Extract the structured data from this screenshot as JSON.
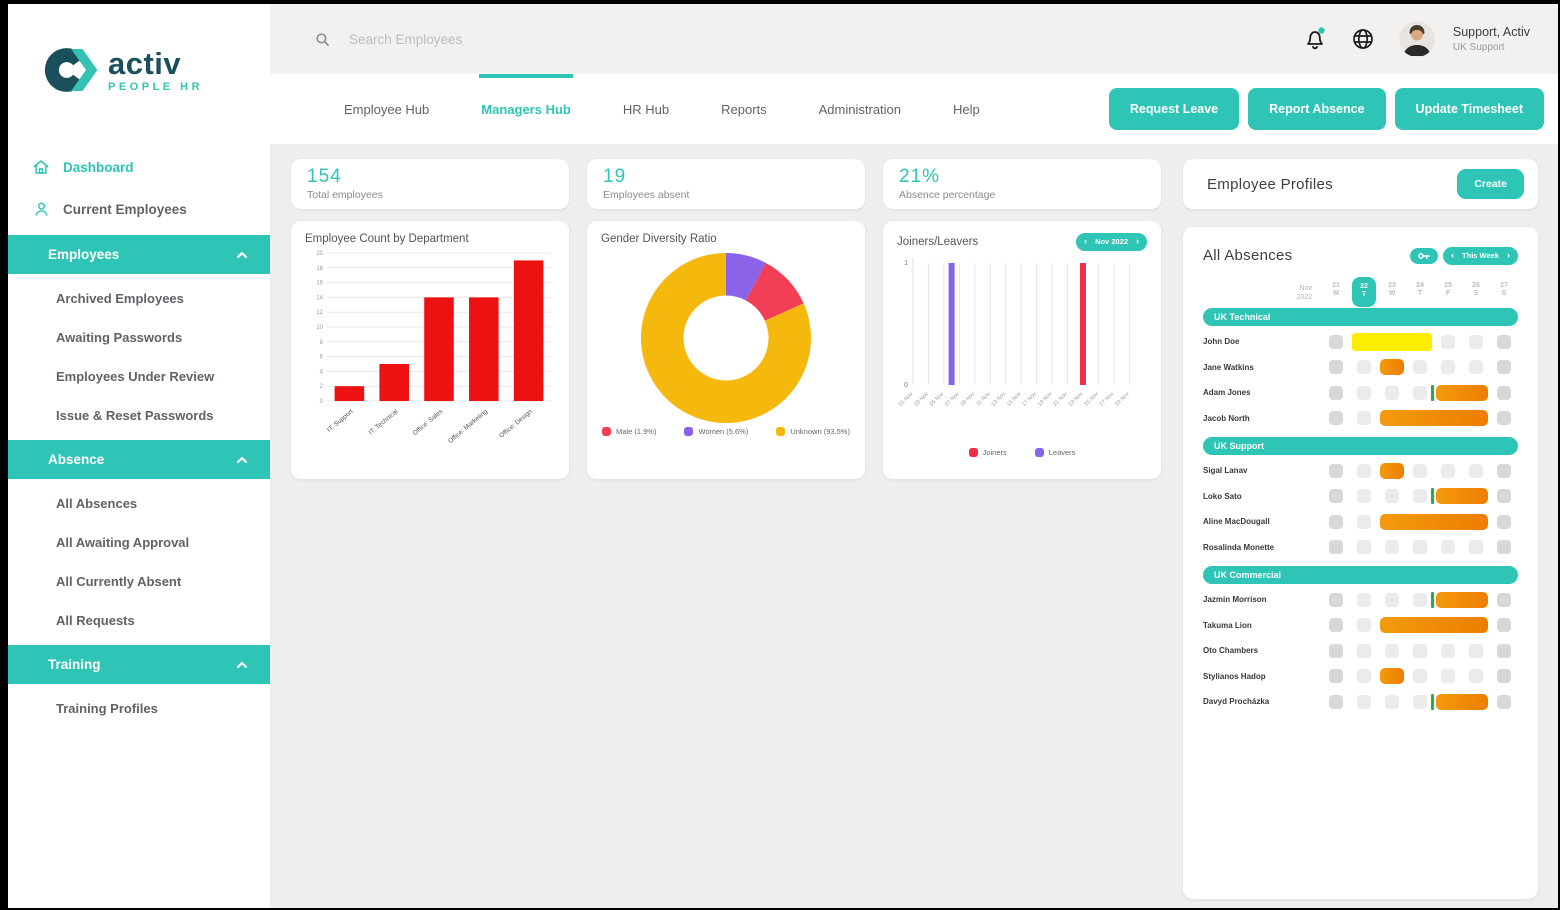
{
  "colors": {
    "accent": "#2ec4b6",
    "logo_dark": "#1b4f5c",
    "bar_red": "#ee1111",
    "pie_male": "#f23e57",
    "pie_women": "#8a63e8",
    "pie_unknown": "#f5b80d",
    "joiners": "#ef2d49",
    "leavers": "#8266e8",
    "absence_orange_from": "#f29b0b",
    "absence_orange_to": "#ee7d01",
    "absence_yellow": "#fdee00",
    "absence_green_marker": "#27ae3f",
    "cell_gray": "#ebebeb",
    "cell_gray_dark": "#d8d8d8"
  },
  "sidebar": {
    "logo": {
      "brand": "activ",
      "sub": "PEOPLE HR"
    },
    "items": [
      {
        "label": "Dashboard",
        "icon": "home-icon",
        "active": true
      },
      {
        "label": "Current Employees",
        "icon": "user-icon",
        "active": false
      }
    ],
    "sections": [
      {
        "label": "Employees",
        "icon": "chevron-up-icon",
        "items": [
          "Archived Employees",
          "Awaiting Passwords",
          "Employees Under Review",
          "Issue & Reset Passwords"
        ]
      },
      {
        "label": "Absence",
        "icon": "chevron-up-icon",
        "items": [
          "All Absences",
          "All Awaiting Approval",
          "All Currently Absent",
          "All Requests"
        ]
      },
      {
        "label": "Training",
        "icon": "chevron-up-icon",
        "items": [
          "Training Profiles"
        ]
      }
    ]
  },
  "topbar": {
    "search_placeholder": "Search Employees",
    "search_icon": "search-icon",
    "bell_icon": "bell-icon",
    "globe_icon": "globe-icon",
    "user_name": "Support, Activ",
    "user_role": "UK Support"
  },
  "nav": {
    "tabs": [
      {
        "label": "Employee Hub",
        "active": false
      },
      {
        "label": "Managers Hub",
        "active": true
      },
      {
        "label": "HR Hub",
        "active": false
      },
      {
        "label": "Reports",
        "active": false
      },
      {
        "label": "Administration",
        "active": false
      },
      {
        "label": "Help",
        "active": false
      }
    ],
    "actions": [
      "Request Leave",
      "Report Absence",
      "Update Timesheet"
    ]
  },
  "stats": [
    {
      "value": "154",
      "label": "Total employees"
    },
    {
      "value": "19",
      "label": "Employees absent"
    },
    {
      "value": "21%",
      "label": "Absence percentage"
    }
  ],
  "chart_data": [
    {
      "type": "bar",
      "title": "Employee Count by Department",
      "categories": [
        "IT: Support",
        "IT: Technical",
        "Office: Sales",
        "Office: Marketing",
        "Office: Design"
      ],
      "values": [
        2,
        5,
        14,
        14,
        19
      ],
      "xlabel": "",
      "ylabel": "",
      "ylim": [
        0,
        20
      ],
      "ytick_step": 2,
      "grid": true,
      "bar_color": "#ee1111"
    },
    {
      "type": "pie",
      "title": "Gender Diversity Ratio",
      "donut": true,
      "legend_position": "bottom",
      "slices": [
        {
          "label": "Male",
          "percent": "1.9%",
          "value": 1.9,
          "color": "#f23e57",
          "display_deg": 38
        },
        {
          "label": "Women",
          "percent": "5.6%",
          "value": 5.6,
          "color": "#8a63e8",
          "display_deg": 28
        },
        {
          "label": "Unknown",
          "percent": "93.5%",
          "value": 93.5,
          "color": "#f5b80d",
          "display_deg": 294
        }
      ],
      "arc_order": [
        1,
        0,
        2
      ]
    },
    {
      "type": "bar",
      "title": "Joiners/Leavers",
      "period_label": "Nov 2022",
      "x_labels": [
        "01 Nov",
        "03 Nov",
        "05 Nov",
        "07 Nov",
        "09 Nov",
        "11 Nov",
        "13 Nov",
        "15 Nov",
        "17 Nov",
        "19 Nov",
        "21 Nov",
        "23 Nov",
        "25 Nov",
        "27 Nov",
        "29 Nov"
      ],
      "ylim": [
        0,
        1
      ],
      "grid": true,
      "legend_position": "bottom",
      "series": [
        {
          "name": "Joiners",
          "color": "#ef2d49",
          "points": [
            {
              "day": 23,
              "label": "23 Nov",
              "y": 1
            }
          ]
        },
        {
          "name": "Leavers",
          "color": "#8266e8",
          "points": [
            {
              "day": 6,
              "label": "06 Nov",
              "y": 1
            }
          ]
        }
      ]
    }
  ],
  "profiles_card": {
    "title": "Employee Profiles",
    "create_label": "Create"
  },
  "absences": {
    "title": "All Absences",
    "key_icon": "key-icon",
    "week_pill": "This Week",
    "month": "Nov",
    "year": "2022",
    "days": [
      {
        "num": "21",
        "dow": "M",
        "active": false
      },
      {
        "num": "22",
        "dow": "T",
        "active": true
      },
      {
        "num": "23",
        "dow": "W",
        "active": false
      },
      {
        "num": "24",
        "dow": "T",
        "active": false
      },
      {
        "num": "25",
        "dow": "F",
        "active": false
      },
      {
        "num": "26",
        "dow": "S",
        "active": false
      },
      {
        "num": "27",
        "dow": "S",
        "active": false
      }
    ],
    "sections": [
      {
        "label": "UK Technical",
        "rows": [
          {
            "name": "John Doe",
            "cells": [
              "d",
              "y3",
              "g",
              "g",
              "d"
            ]
          },
          {
            "name": "Jane Watkins",
            "cells": [
              "d",
              "g",
              "o1",
              "g",
              "g",
              "g",
              "d"
            ]
          },
          {
            "name": "Adam Jones",
            "cells": [
              "d",
              "g",
              "g",
              "t",
              "o2",
              "d"
            ]
          },
          {
            "name": "Jacob North",
            "cells": [
              "d",
              "g",
              "o4",
              "d"
            ]
          }
        ]
      },
      {
        "label": "UK Support",
        "rows": [
          {
            "name": "Sigal Lanav",
            "cells": [
              "d",
              "g",
              "o1",
              "g",
              "g",
              "g",
              "d"
            ]
          },
          {
            "name": "Loko Sato",
            "cells": [
              "d",
              "g",
              "g",
              "t",
              "o2",
              "d"
            ]
          },
          {
            "name": "Aline MacDougall",
            "cells": [
              "d",
              "g",
              "o4",
              "d"
            ]
          },
          {
            "name": "Rosalinda Monette",
            "cells": [
              "d",
              "g",
              "g",
              "g",
              "g",
              "g",
              "d"
            ]
          }
        ]
      },
      {
        "label": "UK Commercial",
        "rows": [
          {
            "name": "Jazmin Morrison",
            "cells": [
              "d",
              "g",
              "g",
              "t",
              "o2",
              "d"
            ]
          },
          {
            "name": "Takuma Lion",
            "cells": [
              "d",
              "g",
              "o4",
              "d"
            ]
          },
          {
            "name": "Oto Chambers",
            "cells": [
              "d",
              "g",
              "g",
              "g",
              "g",
              "g",
              "d"
            ]
          },
          {
            "name": "Stylianos Hadop",
            "cells": [
              "d",
              "g",
              "o1",
              "g",
              "g",
              "g",
              "d"
            ]
          },
          {
            "name": "Davyd Procházka",
            "cells": [
              "d",
              "g",
              "g",
              "t",
              "o2",
              "d"
            ]
          }
        ]
      }
    ]
  }
}
